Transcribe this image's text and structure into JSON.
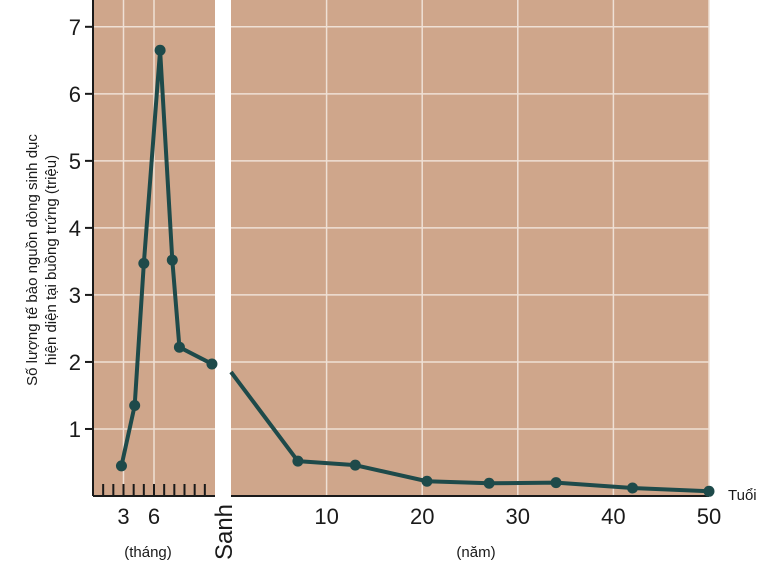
{
  "chart_data": {
    "type": "line",
    "ylabel_lines": [
      "Số lượng tế bào nguồn dòng sinh dục",
      "hiện diện tại buồng trứng (triệu)"
    ],
    "xlabel": "Tuổi",
    "prenatal_unit": "(tháng)",
    "postnatal_unit": "(năm)",
    "birth_label": "Sanh",
    "ylim": [
      0,
      7.4
    ],
    "yticks": [
      1,
      2,
      3,
      4,
      5,
      6,
      7
    ],
    "prenatal_xlim": [
      0,
      12
    ],
    "prenatal_ticklabels": [
      {
        "x": 3,
        "label": "3"
      },
      {
        "x": 6,
        "label": "6"
      }
    ],
    "postnatal_xlim": [
      0,
      50
    ],
    "postnatal_ticklabels": [
      {
        "x": 10,
        "label": "10"
      },
      {
        "x": 20,
        "label": "20"
      },
      {
        "x": 30,
        "label": "30"
      },
      {
        "x": 40,
        "label": "40"
      },
      {
        "x": 50,
        "label": "50"
      }
    ],
    "grid": true,
    "colors": {
      "background": "#cfa68b",
      "grid": "#efe0d5",
      "line": "#1e4a4a",
      "birth_band": "#ffffff"
    },
    "series": [
      {
        "prenatal": [
          {
            "x": 2.8,
            "y": 0.45
          },
          {
            "x": 4.1,
            "y": 1.35
          },
          {
            "x": 5.0,
            "y": 3.47
          },
          {
            "x": 6.6,
            "y": 6.65
          },
          {
            "x": 7.8,
            "y": 3.52
          },
          {
            "x": 8.5,
            "y": 2.22
          },
          {
            "x": 11.7,
            "y": 1.97
          }
        ],
        "postnatal": [
          {
            "x": 0,
            "y": 1.85,
            "marker": false
          },
          {
            "x": 7,
            "y": 0.52
          },
          {
            "x": 13,
            "y": 0.46
          },
          {
            "x": 20.5,
            "y": 0.22
          },
          {
            "x": 27,
            "y": 0.19
          },
          {
            "x": 34,
            "y": 0.2
          },
          {
            "x": 42,
            "y": 0.12
          },
          {
            "x": 50,
            "y": 0.07
          }
        ]
      }
    ]
  }
}
